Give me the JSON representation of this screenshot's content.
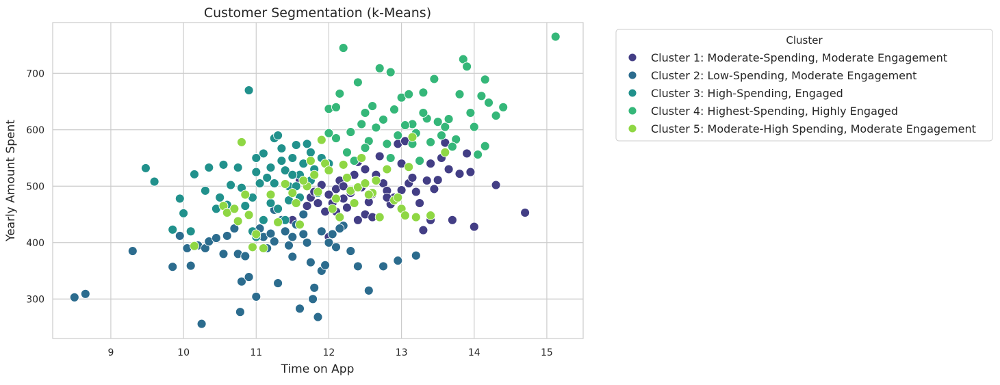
{
  "chart_data": {
    "type": "scatter",
    "title": "Customer Segmentation (k-Means)",
    "xlabel": "Time on App",
    "ylabel": "Yearly Amount Spent",
    "xlim": [
      8.2,
      15.5
    ],
    "ylim": [
      230,
      790
    ],
    "xticks": [
      9,
      10,
      11,
      12,
      13,
      14,
      15
    ],
    "yticks": [
      300,
      400,
      500,
      600,
      700
    ],
    "grid": true,
    "legend": {
      "title": "Cluster",
      "placement": "outside-right-top"
    },
    "series": [
      {
        "name": "Cluster 1: Moderate-Spending, Moderate Engagement",
        "color": "#433e85",
        "points": [
          [
            11.6,
            510
          ],
          [
            11.7,
            465
          ],
          [
            11.75,
            480
          ],
          [
            11.8,
            490
          ],
          [
            11.85,
            470
          ],
          [
            11.9,
            502
          ],
          [
            11.95,
            455
          ],
          [
            12.0,
            485
          ],
          [
            12.05,
            470
          ],
          [
            12.1,
            495
          ],
          [
            12.15,
            510
          ],
          [
            12.2,
            478
          ],
          [
            12.25,
            462
          ],
          [
            12.3,
            488
          ],
          [
            12.35,
            520
          ],
          [
            12.4,
            543
          ],
          [
            12.45,
            498
          ],
          [
            12.5,
            450
          ],
          [
            12.55,
            472
          ],
          [
            12.6,
            486
          ],
          [
            12.65,
            520
          ],
          [
            12.7,
            553
          ],
          [
            12.75,
            505
          ],
          [
            12.8,
            492
          ],
          [
            12.85,
            468
          ],
          [
            12.9,
            480
          ],
          [
            12.95,
            575
          ],
          [
            13.0,
            493
          ],
          [
            13.05,
            580
          ],
          [
            13.1,
            505
          ],
          [
            13.15,
            515
          ],
          [
            13.2,
            490
          ],
          [
            13.25,
            470
          ],
          [
            13.3,
            422
          ],
          [
            13.35,
            510
          ],
          [
            13.4,
            440
          ],
          [
            13.45,
            495
          ],
          [
            13.5,
            511
          ],
          [
            13.55,
            550
          ],
          [
            13.6,
            577
          ],
          [
            13.65,
            530
          ],
          [
            13.7,
            440
          ],
          [
            13.8,
            522
          ],
          [
            13.9,
            558
          ],
          [
            13.95,
            525
          ],
          [
            14.0,
            428
          ],
          [
            14.3,
            502
          ],
          [
            14.7,
            453
          ],
          [
            12.4,
            440
          ],
          [
            12.6,
            445
          ],
          [
            13.4,
            540
          ],
          [
            12.1,
            455
          ],
          [
            12.2,
            500
          ],
          [
            12.5,
            530
          ],
          [
            12.0,
            410
          ],
          [
            12.8,
            480
          ],
          [
            13.0,
            540
          ],
          [
            11.5,
            440
          ]
        ]
      },
      {
        "name": "Cluster 2: Low-Spending, Moderate Engagement",
        "color": "#2c6c8e",
        "points": [
          [
            8.5,
            303
          ],
          [
            8.65,
            309
          ],
          [
            9.3,
            385
          ],
          [
            9.85,
            357
          ],
          [
            9.95,
            412
          ],
          [
            10.05,
            390
          ],
          [
            10.1,
            359
          ],
          [
            10.2,
            395
          ],
          [
            10.3,
            390
          ],
          [
            10.35,
            402
          ],
          [
            10.45,
            408
          ],
          [
            10.55,
            380
          ],
          [
            10.6,
            412
          ],
          [
            10.7,
            425
          ],
          [
            10.75,
            380
          ],
          [
            10.78,
            277
          ],
          [
            10.8,
            331
          ],
          [
            10.85,
            376
          ],
          [
            10.9,
            339
          ],
          [
            11.0,
            304
          ],
          [
            11.05,
            425
          ],
          [
            11.1,
            410
          ],
          [
            11.15,
            390
          ],
          [
            11.2,
            416
          ],
          [
            11.25,
            402
          ],
          [
            11.3,
            328
          ],
          [
            11.35,
            440
          ],
          [
            11.4,
            420
          ],
          [
            11.45,
            395
          ],
          [
            11.5,
            375
          ],
          [
            11.55,
            432
          ],
          [
            11.6,
            283
          ],
          [
            11.65,
            415
          ],
          [
            11.7,
            400
          ],
          [
            11.75,
            365
          ],
          [
            11.78,
            300
          ],
          [
            11.8,
            320
          ],
          [
            11.85,
            268
          ],
          [
            11.9,
            350
          ],
          [
            11.95,
            360
          ],
          [
            12.0,
            400
          ],
          [
            12.05,
            415
          ],
          [
            12.1,
            392
          ],
          [
            12.2,
            430
          ],
          [
            12.3,
            385
          ],
          [
            12.4,
            358
          ],
          [
            12.55,
            315
          ],
          [
            12.75,
            358
          ],
          [
            12.95,
            368
          ],
          [
            13.2,
            377
          ],
          [
            10.25,
            256
          ],
          [
            11.25,
            458
          ],
          [
            11.5,
            410
          ],
          [
            11.65,
            450
          ],
          [
            11.9,
            420
          ],
          [
            12.15,
            425
          ]
        ]
      },
      {
        "name": "Cluster 3: High-Spending, Engaged",
        "color": "#21918c",
        "points": [
          [
            9.48,
            532
          ],
          [
            9.6,
            508
          ],
          [
            9.85,
            423
          ],
          [
            9.95,
            478
          ],
          [
            10.0,
            452
          ],
          [
            10.1,
            420
          ],
          [
            10.15,
            521
          ],
          [
            10.3,
            492
          ],
          [
            10.35,
            533
          ],
          [
            10.45,
            460
          ],
          [
            10.5,
            480
          ],
          [
            10.55,
            538
          ],
          [
            10.6,
            467
          ],
          [
            10.65,
            502
          ],
          [
            10.75,
            533
          ],
          [
            10.8,
            497
          ],
          [
            10.85,
            465
          ],
          [
            10.9,
            670
          ],
          [
            10.95,
            480
          ],
          [
            11.0,
            525
          ],
          [
            11.05,
            505
          ],
          [
            11.1,
            558
          ],
          [
            11.15,
            515
          ],
          [
            11.2,
            533
          ],
          [
            11.25,
            585
          ],
          [
            11.3,
            590
          ],
          [
            11.35,
            567
          ],
          [
            11.4,
            528
          ],
          [
            11.45,
            500
          ],
          [
            11.5,
            550
          ],
          [
            11.55,
            573
          ],
          [
            11.6,
            520
          ],
          [
            11.65,
            540
          ],
          [
            11.7,
            575
          ],
          [
            11.75,
            510
          ],
          [
            11.8,
            530
          ],
          [
            11.85,
            488
          ],
          [
            11.9,
            550
          ],
          [
            11.2,
            470
          ],
          [
            11.1,
            440
          ],
          [
            10.95,
            420
          ],
          [
            11.3,
            460
          ],
          [
            11.5,
            520
          ],
          [
            11.0,
            410
          ],
          [
            11.4,
            440
          ],
          [
            11.6,
            480
          ],
          [
            12.0,
            540
          ],
          [
            11.55,
            500
          ],
          [
            11.25,
            505
          ],
          [
            11.75,
            560
          ],
          [
            11.0,
            550
          ],
          [
            11.35,
            545
          ],
          [
            11.45,
            475
          ]
        ]
      },
      {
        "name": "Cluster 4: Highest-Spending, Highly Engaged",
        "color": "#35b779",
        "points": [
          [
            12.2,
            745
          ],
          [
            12.7,
            709
          ],
          [
            12.85,
            702
          ],
          [
            13.15,
            610
          ],
          [
            13.3,
            666
          ],
          [
            13.45,
            690
          ],
          [
            13.6,
            605
          ],
          [
            13.75,
            583
          ],
          [
            13.8,
            663
          ],
          [
            13.85,
            725
          ],
          [
            13.9,
            712
          ],
          [
            13.95,
            630
          ],
          [
            14.0,
            605
          ],
          [
            14.05,
            556
          ],
          [
            14.1,
            660
          ],
          [
            14.15,
            689
          ],
          [
            14.2,
            648
          ],
          [
            14.3,
            625
          ],
          [
            14.4,
            640
          ],
          [
            14.15,
            571
          ],
          [
            15.12,
            765
          ],
          [
            12.0,
            637
          ],
          [
            12.1,
            640
          ],
          [
            12.15,
            664
          ],
          [
            12.4,
            684
          ],
          [
            12.5,
            630
          ],
          [
            12.6,
            642
          ],
          [
            12.75,
            618
          ],
          [
            12.9,
            636
          ],
          [
            13.0,
            657
          ],
          [
            13.1,
            663
          ],
          [
            13.2,
            594
          ],
          [
            13.35,
            620
          ],
          [
            13.5,
            614
          ],
          [
            13.65,
            619
          ],
          [
            13.7,
            570
          ],
          [
            12.3,
            596
          ],
          [
            12.45,
            610
          ],
          [
            12.55,
            580
          ],
          [
            12.65,
            604
          ],
          [
            12.8,
            575
          ],
          [
            12.95,
            590
          ],
          [
            13.05,
            608
          ],
          [
            13.25,
            545
          ],
          [
            13.4,
            578
          ],
          [
            12.0,
            594
          ],
          [
            12.1,
            585
          ],
          [
            12.25,
            560
          ],
          [
            12.35,
            545
          ],
          [
            12.5,
            568
          ],
          [
            13.55,
            590
          ],
          [
            13.3,
            630
          ],
          [
            12.85,
            550
          ],
          [
            13.15,
            575
          ]
        ]
      },
      {
        "name": "Cluster 5: Moderate-High Spending, Moderate Engagement",
        "color": "#8fd744",
        "points": [
          [
            10.15,
            394
          ],
          [
            10.55,
            465
          ],
          [
            10.6,
            453
          ],
          [
            10.7,
            460
          ],
          [
            10.75,
            438
          ],
          [
            10.8,
            578
          ],
          [
            10.85,
            485
          ],
          [
            10.9,
            449
          ],
          [
            10.95,
            392
          ],
          [
            11.0,
            415
          ],
          [
            11.1,
            390
          ],
          [
            11.2,
            485
          ],
          [
            11.3,
            436
          ],
          [
            11.4,
            504
          ],
          [
            11.5,
            488
          ],
          [
            11.55,
            470
          ],
          [
            11.6,
            432
          ],
          [
            11.7,
            500
          ],
          [
            11.75,
            545
          ],
          [
            11.8,
            520
          ],
          [
            11.85,
            490
          ],
          [
            11.9,
            582
          ],
          [
            11.95,
            540
          ],
          [
            12.0,
            528
          ],
          [
            12.1,
            478
          ],
          [
            12.15,
            445
          ],
          [
            12.2,
            538
          ],
          [
            12.25,
            515
          ],
          [
            12.3,
            492
          ],
          [
            12.4,
            498
          ],
          [
            12.5,
            505
          ],
          [
            12.6,
            488
          ],
          [
            12.7,
            445
          ],
          [
            12.8,
            530
          ],
          [
            12.9,
            475
          ],
          [
            13.0,
            460
          ],
          [
            13.05,
            448
          ],
          [
            13.1,
            534
          ],
          [
            13.2,
            445
          ],
          [
            13.4,
            448
          ],
          [
            13.6,
            560
          ],
          [
            12.45,
            550
          ],
          [
            12.55,
            485
          ],
          [
            12.35,
            470
          ],
          [
            12.65,
            510
          ],
          [
            12.05,
            460
          ],
          [
            11.65,
            510
          ],
          [
            12.95,
            480
          ],
          [
            13.15,
            587
          ]
        ]
      }
    ]
  }
}
